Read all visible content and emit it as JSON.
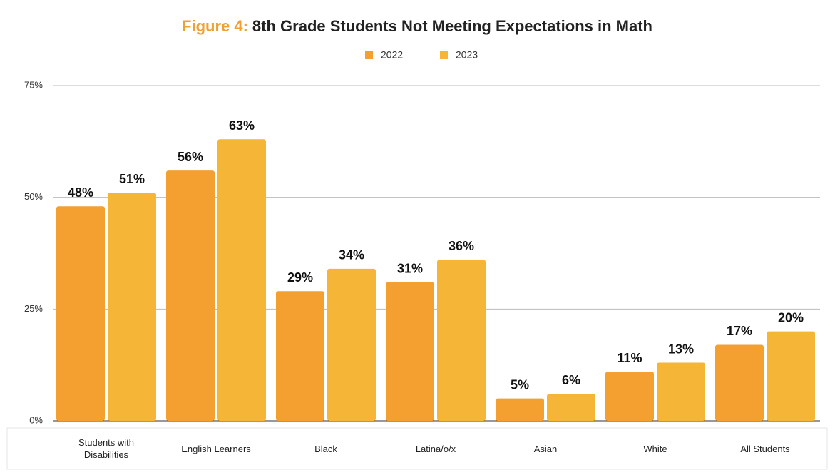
{
  "chart_data": {
    "type": "bar",
    "title_label": "Figure 4:",
    "title": "8th Grade Students Not Meeting Expectations in Math",
    "categories": [
      "Students with Disabilities",
      "English Learners",
      "Black",
      "Latina/o/x",
      "Asian",
      "White",
      "All Students"
    ],
    "series": [
      {
        "name": "2022",
        "color": "#f4a030",
        "values": [
          48,
          56,
          29,
          31,
          5,
          11,
          17
        ],
        "value_labels": [
          "48%",
          "56%",
          "29%",
          "31%",
          "5%",
          "11%",
          "17%"
        ]
      },
      {
        "name": "2023",
        "color": "#f5b536",
        "values": [
          51,
          63,
          34,
          36,
          6,
          13,
          20
        ],
        "value_labels": [
          "51%",
          "63%",
          "34%",
          "36%",
          "6%",
          "13%",
          "20%"
        ]
      }
    ],
    "ylim": [
      0,
      75
    ],
    "yticks": [
      {
        "value": 0,
        "label": "0%"
      },
      {
        "value": 25,
        "label": "25%"
      },
      {
        "value": 50,
        "label": "50%"
      },
      {
        "value": 75,
        "label": "75%"
      }
    ],
    "grid": true,
    "legend": "top"
  }
}
